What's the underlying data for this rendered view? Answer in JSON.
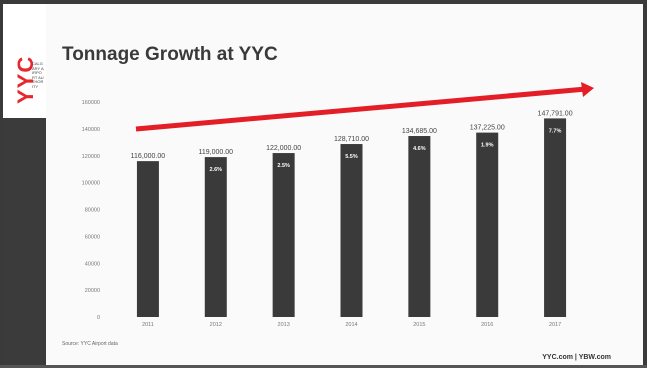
{
  "slide": {
    "title": "Tonnage Growth at YYC",
    "logo_text": "YYC",
    "logo_subtext": "CALGARY AIRPORT AUTHORITY",
    "source": "Source: YYC Airport data",
    "footer": "YYC.com | YBW.com"
  },
  "colors": {
    "accent": "#e8262c",
    "bar": "#3a3a3a",
    "arrow": "#e41e26",
    "text": "#3a3a3a"
  },
  "chart_data": {
    "type": "bar",
    "title": "Tonnage Growth at YYC",
    "categories": [
      "2011",
      "2012",
      "2013",
      "2014",
      "2015",
      "2016",
      "2017"
    ],
    "values": [
      116000,
      119000,
      122000,
      128710,
      134685,
      137225,
      147791
    ],
    "value_labels": [
      "116,000.00",
      "119,000.00",
      "122,000.00",
      "128,710.00",
      "134,685.00",
      "137,225.00",
      "147,791.00"
    ],
    "growth_labels": [
      "",
      "2.6%",
      "2.5%",
      "5.5%",
      "4.6%",
      "1.9%",
      "7.7%"
    ],
    "yticks": [
      0,
      20000,
      40000,
      60000,
      80000,
      100000,
      120000,
      140000,
      160000
    ],
    "ytick_labels": [
      "0",
      "20000",
      "40000",
      "60000",
      "80000",
      "100000",
      "120000",
      "140000",
      "160000"
    ],
    "ylim": [
      0,
      160000
    ],
    "xlabel": "",
    "ylabel": "",
    "grid": false,
    "legend": "none",
    "trend_arrow": "increasing"
  }
}
